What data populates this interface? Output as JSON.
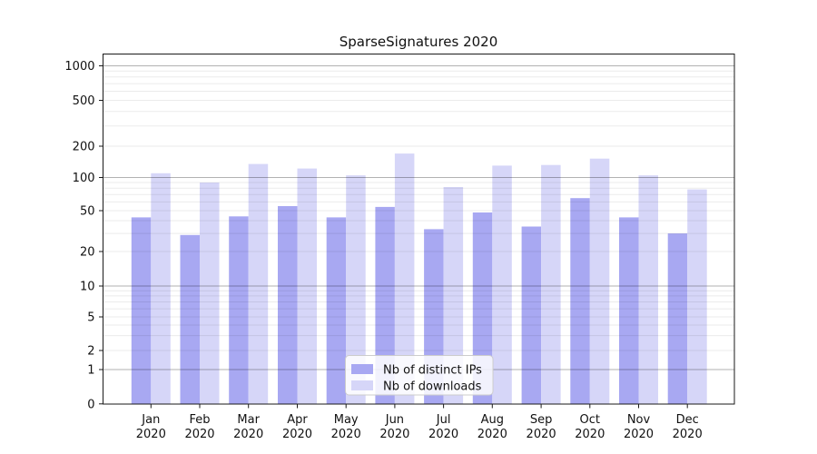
{
  "chart_data": {
    "type": "bar",
    "title": "SparseSignatures 2020",
    "categories": [
      "Jan 2020",
      "Feb 2020",
      "Mar 2020",
      "Apr 2020",
      "May 2020",
      "Jun 2020",
      "Jul 2020",
      "Aug 2020",
      "Sep 2020",
      "Oct 2020",
      "Nov 2020",
      "Dec 2020"
    ],
    "series": [
      {
        "name": "Nb of distinct IPs",
        "color": "#a8a8f2",
        "values": [
          43,
          29,
          44,
          55,
          43,
          54,
          33,
          48,
          35,
          65,
          43,
          30
        ]
      },
      {
        "name": "Nb of downloads",
        "color": "#d6d6f8",
        "values": [
          110,
          90,
          135,
          122,
          105,
          170,
          82,
          130,
          132,
          152,
          105,
          78
        ]
      }
    ],
    "y_axis": {
      "scale": "symlog",
      "ticks": [
        0,
        1,
        2,
        5,
        10,
        20,
        50,
        100,
        200,
        500,
        1000
      ],
      "range": [
        0,
        1000
      ],
      "minor_gridlines": true
    },
    "x_axis": {
      "tick_label_lines": 2,
      "year_line": "2020"
    },
    "legend": {
      "position": "lower center",
      "labels": [
        "Nb of distinct IPs",
        "Nb of downloads"
      ]
    },
    "grid": true,
    "colors": {
      "major_gridline": "#b0b0b0",
      "minor_gridline": "#ececec",
      "axis_frame": "#1a1a1a",
      "legend_border": "#cccccc",
      "background": "#ffffff"
    }
  }
}
